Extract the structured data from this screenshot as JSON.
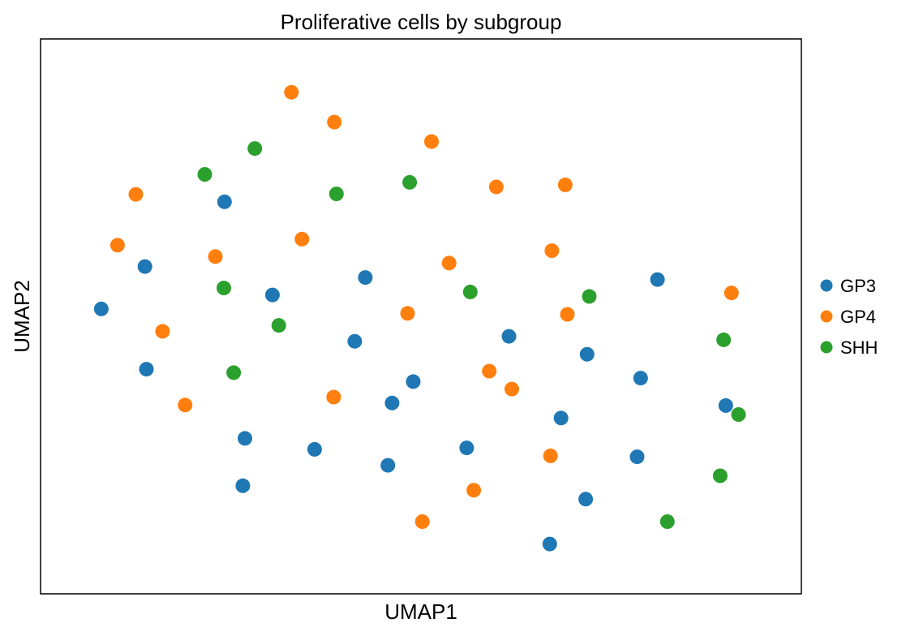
{
  "chart_data": {
    "type": "scatter",
    "title": "Proliferative cells by subgroup",
    "xlabel": "UMAP1",
    "ylabel": "UMAP2",
    "xlim": [
      0,
      100
    ],
    "ylim": [
      0,
      100
    ],
    "grid": false,
    "ticks": false,
    "legend_position": "right",
    "series": [
      {
        "name": "GP3",
        "color": "#1f77b4",
        "points": [
          [
            4.6,
            51.5
          ],
          [
            10.8,
            60.0
          ],
          [
            11.0,
            39.4
          ],
          [
            22.1,
            73.0
          ],
          [
            25.0,
            25.5
          ],
          [
            24.7,
            16.0
          ],
          [
            28.9,
            54.3
          ],
          [
            34.9,
            23.3
          ],
          [
            40.6,
            45.0
          ],
          [
            42.1,
            57.8
          ],
          [
            45.3,
            20.1
          ],
          [
            45.9,
            32.6
          ],
          [
            48.9,
            36.9
          ],
          [
            56.5,
            23.6
          ],
          [
            62.5,
            46.0
          ],
          [
            68.3,
            4.3
          ],
          [
            69.9,
            29.6
          ],
          [
            73.4,
            13.3
          ],
          [
            73.6,
            42.4
          ],
          [
            80.7,
            21.8
          ],
          [
            81.2,
            37.6
          ],
          [
            83.6,
            57.4
          ],
          [
            93.3,
            32.1
          ]
        ]
      },
      {
        "name": "GP4",
        "color": "#ff7f0e",
        "points": [
          [
            31.6,
            95.0
          ],
          [
            37.7,
            89.0
          ],
          [
            51.5,
            85.1
          ],
          [
            60.7,
            76.0
          ],
          [
            70.5,
            76.4
          ],
          [
            9.5,
            74.5
          ],
          [
            6.9,
            64.3
          ],
          [
            20.8,
            62.0
          ],
          [
            33.1,
            65.5
          ],
          [
            54.0,
            60.7
          ],
          [
            68.6,
            63.2
          ],
          [
            94.1,
            54.7
          ],
          [
            48.1,
            50.6
          ],
          [
            70.8,
            50.4
          ],
          [
            13.3,
            47.0
          ],
          [
            59.7,
            39.0
          ],
          [
            62.9,
            35.4
          ],
          [
            16.5,
            32.2
          ],
          [
            37.6,
            33.8
          ],
          [
            68.4,
            22.0
          ],
          [
            57.5,
            15.1
          ],
          [
            50.2,
            8.8
          ]
        ]
      },
      {
        "name": "SHH",
        "color": "#2ca02c",
        "points": [
          [
            26.4,
            83.7
          ],
          [
            19.3,
            78.5
          ],
          [
            38.0,
            74.6
          ],
          [
            48.4,
            76.9
          ],
          [
            22.0,
            55.7
          ],
          [
            57.0,
            54.9
          ],
          [
            73.9,
            54.0
          ],
          [
            29.8,
            48.2
          ],
          [
            23.4,
            38.7
          ],
          [
            93.0,
            45.3
          ],
          [
            95.1,
            30.3
          ],
          [
            92.5,
            18.0
          ],
          [
            85.0,
            8.8
          ]
        ]
      }
    ]
  }
}
